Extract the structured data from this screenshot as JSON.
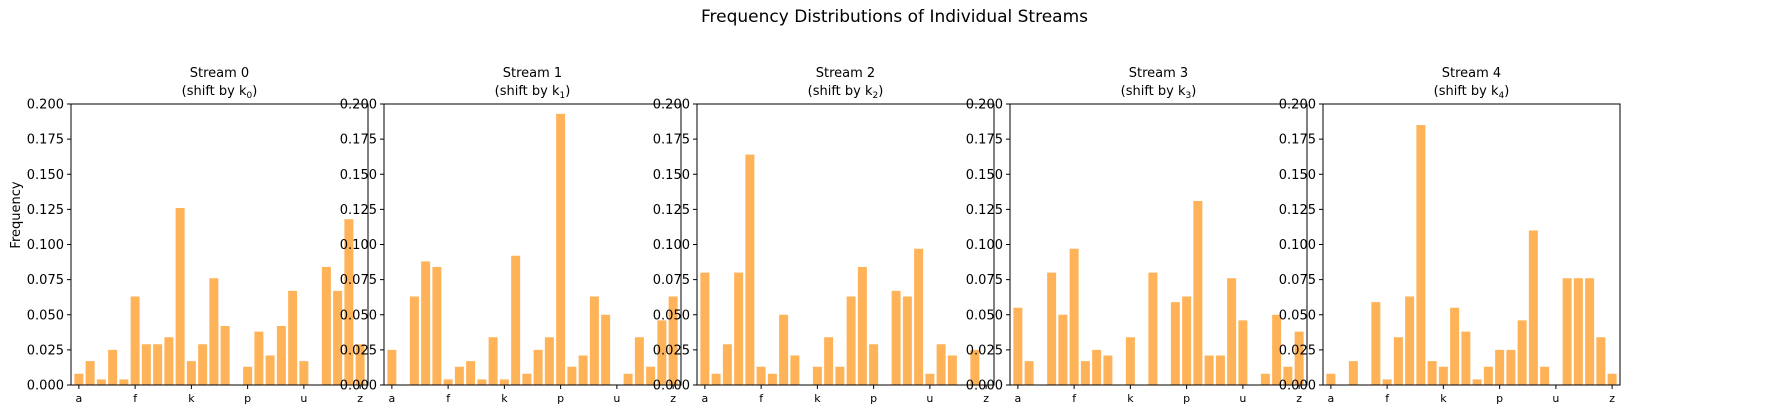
{
  "figure": {
    "title": "Frequency Distributions of Individual Streams",
    "ylabel": "Frequency",
    "bar_color": "#ffa030",
    "bar_opacity": 0.8
  },
  "chart_data": [
    {
      "type": "bar",
      "title": "Stream 0",
      "subtitle_prefix": "(shift by k",
      "subtitle_sub": "0",
      "subtitle_suffix": ")",
      "categories": [
        "a",
        "b",
        "c",
        "d",
        "e",
        "f",
        "g",
        "h",
        "i",
        "j",
        "k",
        "l",
        "m",
        "n",
        "o",
        "p",
        "q",
        "r",
        "s",
        "t",
        "u",
        "v",
        "w",
        "x",
        "y",
        "z"
      ],
      "xtick_labels": [
        "a",
        "f",
        "k",
        "p",
        "u",
        "z"
      ],
      "yticks": [
        "0.000",
        "0.025",
        "0.050",
        "0.075",
        "0.100",
        "0.125",
        "0.150",
        "0.175",
        "0.200"
      ],
      "ylim": [
        0,
        0.2
      ],
      "values": [
        0.008,
        0.017,
        0.004,
        0.025,
        0.004,
        0.063,
        0.029,
        0.029,
        0.034,
        0.126,
        0.017,
        0.029,
        0.076,
        0.042,
        0.0,
        0.013,
        0.038,
        0.021,
        0.042,
        0.067,
        0.017,
        0.0,
        0.084,
        0.067,
        0.118,
        0.029
      ]
    },
    {
      "type": "bar",
      "title": "Stream 1",
      "subtitle_prefix": "(shift by k",
      "subtitle_sub": "1",
      "subtitle_suffix": ")",
      "categories": [
        "a",
        "b",
        "c",
        "d",
        "e",
        "f",
        "g",
        "h",
        "i",
        "j",
        "k",
        "l",
        "m",
        "n",
        "o",
        "p",
        "q",
        "r",
        "s",
        "t",
        "u",
        "v",
        "w",
        "x",
        "y",
        "z"
      ],
      "xtick_labels": [
        "a",
        "f",
        "k",
        "p",
        "u",
        "z"
      ],
      "yticks": [
        "0.000",
        "0.025",
        "0.050",
        "0.075",
        "0.100",
        "0.125",
        "0.150",
        "0.175",
        "0.200"
      ],
      "ylim": [
        0,
        0.2
      ],
      "values": [
        0.025,
        0.0,
        0.063,
        0.088,
        0.084,
        0.004,
        0.013,
        0.017,
        0.004,
        0.034,
        0.004,
        0.092,
        0.008,
        0.025,
        0.034,
        0.193,
        0.013,
        0.021,
        0.063,
        0.05,
        0.0,
        0.008,
        0.034,
        0.013,
        0.046,
        0.063
      ]
    },
    {
      "type": "bar",
      "title": "Stream 2",
      "subtitle_prefix": "(shift by k",
      "subtitle_sub": "2",
      "subtitle_suffix": ")",
      "categories": [
        "a",
        "b",
        "c",
        "d",
        "e",
        "f",
        "g",
        "h",
        "i",
        "j",
        "k",
        "l",
        "m",
        "n",
        "o",
        "p",
        "q",
        "r",
        "s",
        "t",
        "u",
        "v",
        "w",
        "x",
        "y",
        "z"
      ],
      "xtick_labels": [
        "a",
        "f",
        "k",
        "p",
        "u",
        "z"
      ],
      "yticks": [
        "0.000",
        "0.025",
        "0.050",
        "0.075",
        "0.100",
        "0.125",
        "0.150",
        "0.175",
        "0.200"
      ],
      "ylim": [
        0,
        0.2
      ],
      "values": [
        0.08,
        0.008,
        0.029,
        0.08,
        0.164,
        0.013,
        0.008,
        0.05,
        0.021,
        0.0,
        0.013,
        0.034,
        0.013,
        0.063,
        0.084,
        0.029,
        0.0,
        0.067,
        0.063,
        0.097,
        0.008,
        0.029,
        0.021,
        0.0,
        0.025,
        0.0
      ]
    },
    {
      "type": "bar",
      "title": "Stream 3",
      "subtitle_prefix": "(shift by k",
      "subtitle_sub": "3",
      "subtitle_suffix": ")",
      "categories": [
        "a",
        "b",
        "c",
        "d",
        "e",
        "f",
        "g",
        "h",
        "i",
        "j",
        "k",
        "l",
        "m",
        "n",
        "o",
        "p",
        "q",
        "r",
        "s",
        "t",
        "u",
        "v",
        "w",
        "x",
        "y",
        "z"
      ],
      "xtick_labels": [
        "a",
        "f",
        "k",
        "p",
        "u",
        "z"
      ],
      "yticks": [
        "0.000",
        "0.025",
        "0.050",
        "0.075",
        "0.100",
        "0.125",
        "0.150",
        "0.175",
        "0.200"
      ],
      "ylim": [
        0,
        0.2
      ],
      "values": [
        0.055,
        0.017,
        0.0,
        0.08,
        0.05,
        0.097,
        0.017,
        0.025,
        0.021,
        0.0,
        0.034,
        0.0,
        0.08,
        0.0,
        0.059,
        0.063,
        0.131,
        0.021,
        0.021,
        0.076,
        0.046,
        0.0,
        0.008,
        0.05,
        0.013,
        0.038
      ]
    },
    {
      "type": "bar",
      "title": "Stream 4",
      "subtitle_prefix": "(shift by k",
      "subtitle_sub": "4",
      "subtitle_suffix": ")",
      "categories": [
        "a",
        "b",
        "c",
        "d",
        "e",
        "f",
        "g",
        "h",
        "i",
        "j",
        "k",
        "l",
        "m",
        "n",
        "o",
        "p",
        "q",
        "r",
        "s",
        "t",
        "u",
        "v",
        "w",
        "x",
        "y",
        "z"
      ],
      "xtick_labels": [
        "a",
        "f",
        "k",
        "p",
        "u",
        "z"
      ],
      "yticks": [
        "0.000",
        "0.025",
        "0.050",
        "0.075",
        "0.100",
        "0.125",
        "0.150",
        "0.175",
        "0.200"
      ],
      "ylim": [
        0,
        0.2
      ],
      "values": [
        0.008,
        0.0,
        0.017,
        0.0,
        0.059,
        0.004,
        0.034,
        0.063,
        0.185,
        0.017,
        0.013,
        0.055,
        0.038,
        0.004,
        0.013,
        0.025,
        0.025,
        0.046,
        0.11,
        0.013,
        0.0,
        0.076,
        0.076,
        0.076,
        0.034,
        0.008
      ]
    }
  ]
}
